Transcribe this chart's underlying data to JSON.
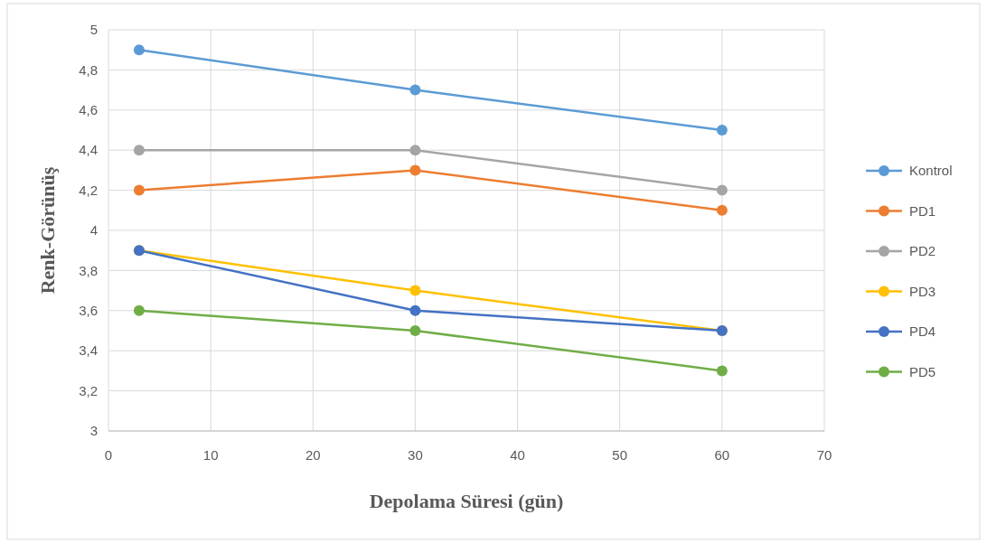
{
  "chart_data": {
    "type": "line",
    "xlabel": "Depolama Süresi (gün)",
    "ylabel": "Renk-Görünüş",
    "x": [
      3,
      30,
      60
    ],
    "series": [
      {
        "name": "Kontrol",
        "color": "#5b9bd5",
        "values": [
          4.9,
          4.7,
          4.5
        ]
      },
      {
        "name": "PD1",
        "color": "#ed7d31",
        "values": [
          4.2,
          4.3,
          4.1
        ]
      },
      {
        "name": "PD2",
        "color": "#a5a5a5",
        "values": [
          4.4,
          4.4,
          4.2
        ]
      },
      {
        "name": "PD3",
        "color": "#ffc000",
        "values": [
          3.9,
          3.7,
          3.5
        ]
      },
      {
        "name": "PD4",
        "color": "#4472c4",
        "values": [
          3.9,
          3.6,
          3.5
        ]
      },
      {
        "name": "PD5",
        "color": "#70ad47",
        "values": [
          3.6,
          3.5,
          3.3
        ]
      }
    ],
    "xlim": [
      0,
      70
    ],
    "xticks": [
      0,
      10,
      20,
      30,
      40,
      50,
      60,
      70
    ],
    "ylim": [
      3,
      5
    ],
    "yticks": [
      3,
      {
        "value": 3.2,
        "label": "3,2"
      },
      {
        "value": 3.4,
        "label": "3,4"
      },
      {
        "value": 3.6,
        "label": "3,6"
      },
      {
        "value": 3.8,
        "label": "3,8"
      },
      4,
      {
        "value": 4.2,
        "label": "4,2"
      },
      {
        "value": 4.4,
        "label": "4,4"
      },
      {
        "value": 4.6,
        "label": "4,6"
      },
      {
        "value": 4.8,
        "label": "4,8"
      },
      5
    ],
    "grid": true,
    "legend": "right",
    "marker": "circle",
    "line_style": "solid"
  }
}
